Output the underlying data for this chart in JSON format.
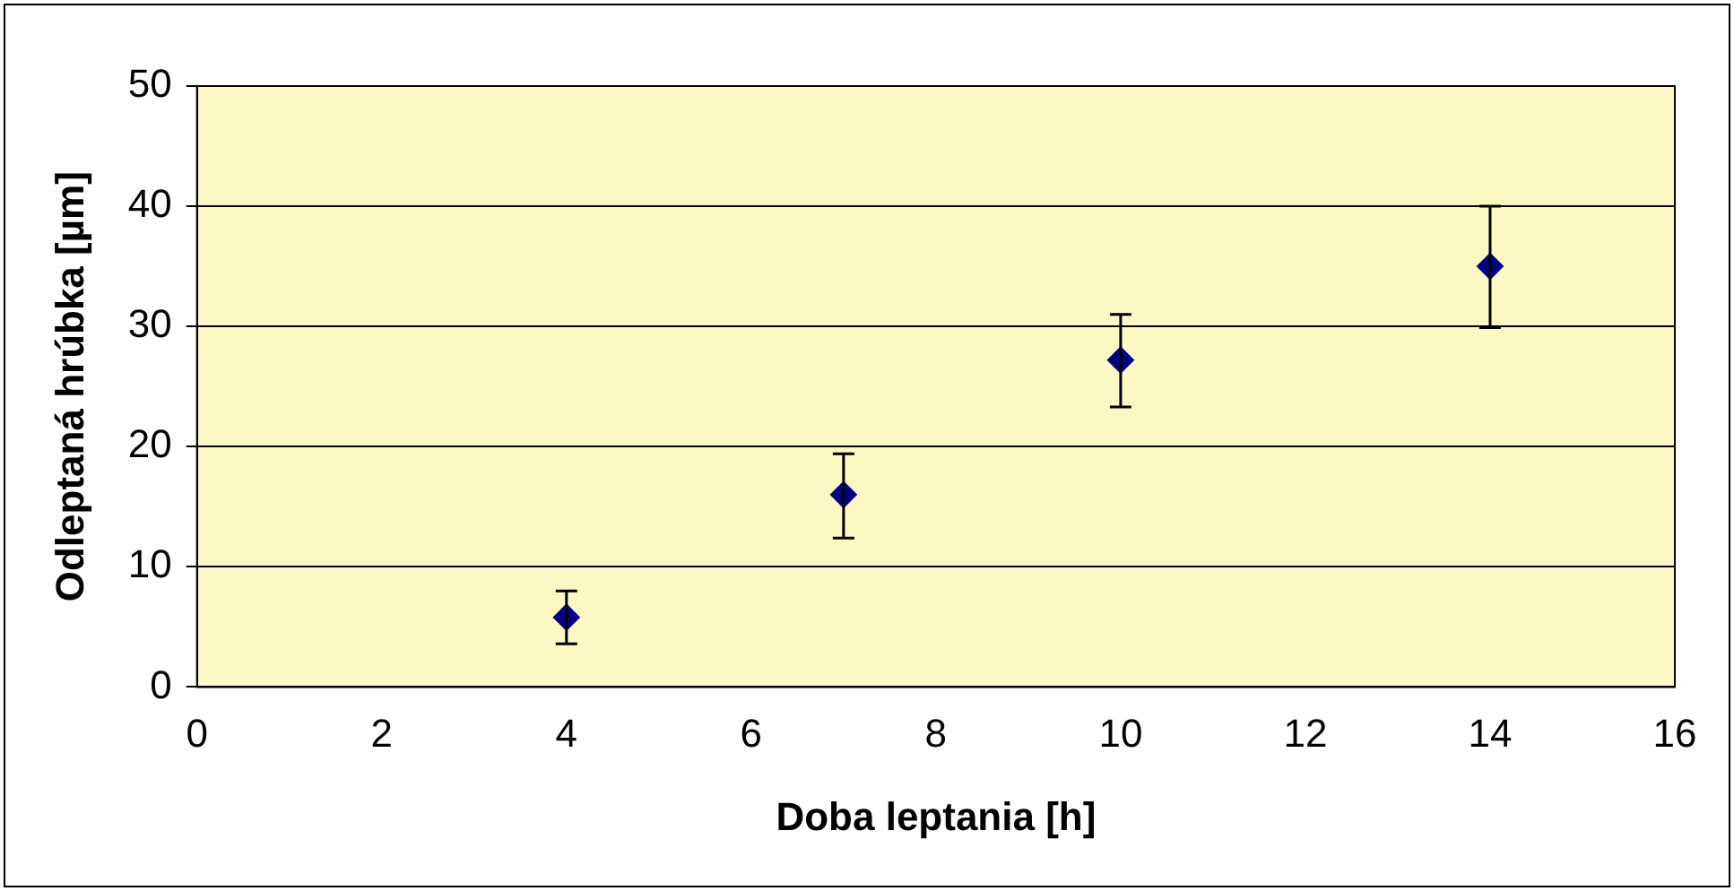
{
  "chart_data": {
    "type": "scatter",
    "xlabel": "Doba leptania [h]",
    "ylabel": "Odleptaná hrúbka [µm]",
    "x": [
      4,
      7,
      10,
      14
    ],
    "values": [
      5.8,
      16,
      27.2,
      35
    ],
    "errors": [
      [
        3.6,
        8
      ],
      [
        12.4,
        19.4
      ],
      [
        23.3,
        31
      ],
      [
        29.9,
        40
      ]
    ],
    "color": "#000080",
    "marker": "diamond",
    "grid": "y",
    "xlim": [
      0,
      16
    ],
    "xticks": [
      0,
      2,
      4,
      6,
      8,
      10,
      12,
      14,
      16
    ],
    "ylim": [
      0,
      50
    ],
    "yticks": [
      0,
      10,
      20,
      30,
      40,
      50
    ]
  }
}
